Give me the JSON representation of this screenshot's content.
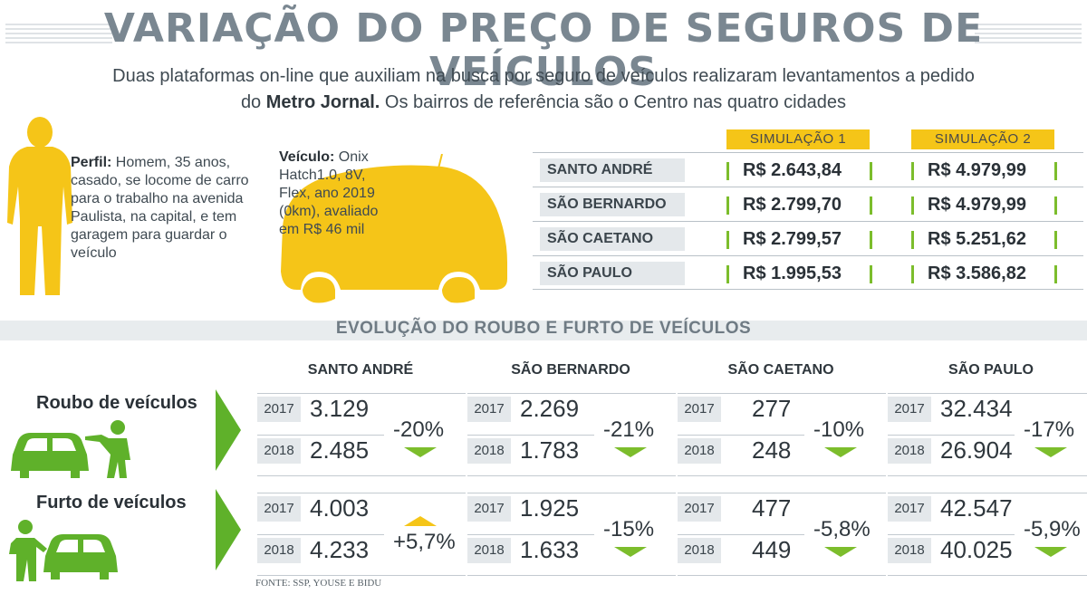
{
  "title": "VARIAÇÃO DO PREÇO DE SEGUROS DE VEÍCULOS",
  "subtitle": {
    "line1": "Duas plataformas on-line que auxiliam na busca por seguro de veículos realizaram levantamentos a pedido",
    "line2_pre": "do ",
    "line2_bold": "Metro Jornal.",
    "line2_post": " Os bairros de referência são o Centro nas quatro cidades"
  },
  "profile": {
    "label": "Perfil:",
    "text": " Homem, 35 anos, casado, se locome de carro para o trabalho na avenida Paulista, na capital, e tem garagem para guardar o veículo"
  },
  "vehicle": {
    "label": "Veículo:",
    "text": " Onix Hatch1.0, 8V, Flex, ano 2019 (0km), avaliado em R$ 46 mil"
  },
  "simulation": {
    "headers": [
      "SIMULAÇÃO 1",
      "SIMULAÇÃO 2"
    ],
    "rows": [
      {
        "city": "SANTO ANDRÉ",
        "s1": "R$ 2.643,84",
        "s2": "R$ 4.979,99"
      },
      {
        "city": "SÃO BERNARDO",
        "s1": "R$ 2.799,70",
        "s2": "R$ 4.979,99"
      },
      {
        "city": "SÃO CAETANO",
        "s1": "R$ 2.799,57",
        "s2": "R$ 5.251,62"
      },
      {
        "city": "SÃO PAULO",
        "s1": "R$ 1.995,53",
        "s2": "R$ 3.586,82"
      }
    ]
  },
  "evolution": {
    "title": "EVOLUÇÃO DO ROUBO E FURTO DE VEÍCULOS",
    "cities": [
      "SANTO ANDRÉ",
      "SÃO BERNARDO",
      "SÃO CAETANO",
      "SÃO PAULO"
    ],
    "years": [
      "2017",
      "2018"
    ],
    "rows": [
      {
        "label": "Roubo de veículos",
        "cells": [
          {
            "y2017": "3.129",
            "y2018": "2.485",
            "change": "-20%",
            "direction": "down"
          },
          {
            "y2017": "2.269",
            "y2018": "1.783",
            "change": "-21%",
            "direction": "down"
          },
          {
            "y2017": "277",
            "y2018": "248",
            "change": "-10%",
            "direction": "down"
          },
          {
            "y2017": "32.434",
            "y2018": "26.904",
            "change": "-17%",
            "direction": "down"
          }
        ]
      },
      {
        "label": "Furto de veículos",
        "cells": [
          {
            "y2017": "4.003",
            "y2018": "4.233",
            "change": "+5,7%",
            "direction": "up"
          },
          {
            "y2017": "1.925",
            "y2018": "1.633",
            "change": "-15%",
            "direction": "down"
          },
          {
            "y2017": "477",
            "y2018": "449",
            "change": "-5,8%",
            "direction": "down"
          },
          {
            "y2017": "42.547",
            "y2018": "40.025",
            "change": "-5,9%",
            "direction": "down"
          }
        ]
      }
    ]
  },
  "source": "FONTE: SSP, YOUSE E BIDU",
  "colors": {
    "yellow": "#f5c518",
    "green": "#7cbd2c",
    "gray_text": "#7a8791"
  },
  "icons": [
    "person-silhouette-icon",
    "car-silhouette-icon",
    "robbery-icon",
    "theft-icon",
    "chevron-right-icon",
    "arrow-down-icon",
    "arrow-up-icon"
  ]
}
